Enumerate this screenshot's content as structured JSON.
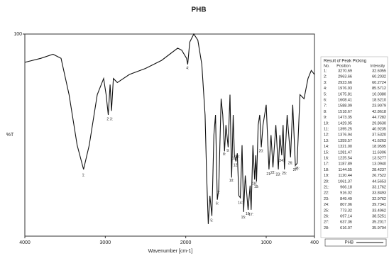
{
  "chart_data": {
    "type": "line",
    "title": "PHB",
    "x_label": "Wavenumber [cm-1]",
    "y_label": "%T",
    "xlim": [
      4000,
      400
    ],
    "xticks": [
      4000,
      3000,
      2000,
      1000,
      400
    ],
    "ylim": [
      0,
      100
    ],
    "yticks": [
      100
    ],
    "series": [
      {
        "name": "PHB",
        "color": "#111111",
        "x": [
          4000,
          3800,
          3650,
          3550,
          3450,
          3350,
          3270,
          3200,
          3100,
          3021,
          2990,
          2963,
          2940,
          2923,
          2900,
          2850,
          2700,
          2500,
          2300,
          2200,
          2100,
          2050,
          1990,
          1976,
          1950,
          1900,
          1850,
          1800,
          1760,
          1740,
          1720,
          1700,
          1675,
          1650,
          1630,
          1608,
          1590,
          1560,
          1540,
          1518,
          1500,
          1473,
          1450,
          1430,
          1410,
          1395,
          1376,
          1359,
          1340,
          1321,
          1300,
          1281,
          1260,
          1225,
          1200,
          1187,
          1165,
          1144,
          1130,
          1120,
          1100,
          1080,
          1061,
          1040,
          1000,
          966,
          940,
          916,
          880,
          849,
          830,
          807,
          790,
          773,
          740,
          697,
          670,
          637,
          616,
          580,
          530,
          480,
          440,
          400
        ],
        "values": [
          86,
          88,
          90,
          88,
          70,
          45,
          33,
          45,
          70,
          78,
          70,
          60,
          75,
          62,
          78,
          76,
          80,
          83,
          87,
          90,
          93,
          92,
          88,
          85,
          96,
          100,
          97,
          85,
          60,
          30,
          6,
          20,
          10,
          50,
          60,
          18,
          23,
          68,
          60,
          42,
          55,
          44,
          70,
          29,
          60,
          40,
          37,
          41,
          20,
          19,
          45,
          12,
          30,
          13,
          25,
          13,
          45,
          28,
          40,
          27,
          55,
          60,
          44,
          55,
          65,
          33,
          50,
          34,
          55,
          33,
          50,
          40,
          55,
          33,
          60,
          39,
          65,
          35,
          36,
          70,
          68,
          78,
          82,
          80
        ]
      }
    ],
    "peak_table": {
      "title": "Result of Peak Picking",
      "columns": [
        "No.",
        "Position",
        "Intensity"
      ],
      "rows": [
        [
          "1:",
          "3270.69",
          "32.6055"
        ],
        [
          "2:",
          "2963.66",
          "60.2032"
        ],
        [
          "3:",
          "2923.66",
          "60.2724"
        ],
        [
          "4:",
          "1976.93",
          "85.5712"
        ],
        [
          "5:",
          "1675.81",
          "10.0380"
        ],
        [
          "6:",
          "1608.41",
          "18.5210"
        ],
        [
          "7:",
          "1588.09",
          "23.9079"
        ],
        [
          "8:",
          "1518.67",
          "42.8618"
        ],
        [
          "9:",
          "1473.35",
          "44.7282"
        ],
        [
          "10:",
          "1429.95",
          "29.8630"
        ],
        [
          "11:",
          "1395.25",
          "40.9235"
        ],
        [
          "12:",
          "1376.94",
          "37.5320"
        ],
        [
          "13:",
          "1359.57",
          "41.6263"
        ],
        [
          "14:",
          "1321.00",
          "18.9595"
        ],
        [
          "15:",
          "1281.47",
          "11.6306"
        ],
        [
          "16:",
          "1225.54",
          "13.5277"
        ],
        [
          "17:",
          "1187.89",
          "13.0940"
        ],
        [
          "18:",
          "1144.55",
          "28.4237"
        ],
        [
          "19:",
          "1120.44",
          "26.7522"
        ],
        [
          "20:",
          "1061.37",
          "44.5653"
        ],
        [
          "21:",
          "966.18",
          "33.1762"
        ],
        [
          "22:",
          "916.02",
          "33.8493"
        ],
        [
          "23:",
          "849.49",
          "32.9762"
        ],
        [
          "24:",
          "807.06",
          "39.7341"
        ],
        [
          "25:",
          "773.32",
          "33.4962"
        ],
        [
          "26:",
          "697.14",
          "38.5251"
        ],
        [
          "27:",
          "637.36",
          "35.2017"
        ],
        [
          "28:",
          "616.07",
          "35.9794"
        ]
      ]
    }
  }
}
